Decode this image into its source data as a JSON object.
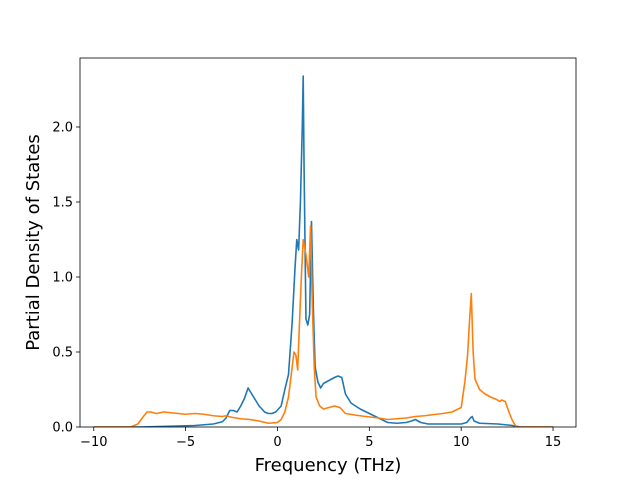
{
  "chart_data": {
    "type": "line",
    "title": "",
    "xlabel": "Frequency (THz)",
    "ylabel": "Partial Density of States",
    "xlim": [
      -10.75,
      16.25
    ],
    "ylim": [
      0,
      2.46
    ],
    "xticks": [
      -10,
      -5,
      0,
      5,
      10,
      15
    ],
    "xtick_labels": [
      "−10",
      "−5",
      "0",
      "5",
      "10",
      "15"
    ],
    "yticks": [
      0.0,
      0.5,
      1.0,
      1.5,
      2.0
    ],
    "ytick_labels": [
      "0.0",
      "0.5",
      "1.0",
      "1.5",
      "2.0"
    ],
    "grid": false,
    "legend": "none",
    "series": [
      {
        "color": "#1f77b4",
        "points": [
          [
            -10,
            0
          ],
          [
            -7.5,
            0.0
          ],
          [
            -6,
            0.005
          ],
          [
            -4.5,
            0.01
          ],
          [
            -3.5,
            0.02
          ],
          [
            -3,
            0.035
          ],
          [
            -2.8,
            0.06
          ],
          [
            -2.6,
            0.11
          ],
          [
            -2.4,
            0.11
          ],
          [
            -2.2,
            0.1
          ],
          [
            -2.0,
            0.14
          ],
          [
            -1.8,
            0.19
          ],
          [
            -1.6,
            0.26
          ],
          [
            -1.5,
            0.24
          ],
          [
            -1.3,
            0.2
          ],
          [
            -1.0,
            0.14
          ],
          [
            -0.7,
            0.1
          ],
          [
            -0.5,
            0.09
          ],
          [
            -0.3,
            0.09
          ],
          [
            -0.1,
            0.1
          ],
          [
            0.2,
            0.14
          ],
          [
            0.4,
            0.25
          ],
          [
            0.6,
            0.35
          ],
          [
            0.8,
            0.7
          ],
          [
            0.95,
            1.05
          ],
          [
            1.05,
            1.25
          ],
          [
            1.15,
            1.18
          ],
          [
            1.25,
            1.5
          ],
          [
            1.35,
            2.0
          ],
          [
            1.4,
            2.34
          ],
          [
            1.45,
            1.7
          ],
          [
            1.55,
            0.72
          ],
          [
            1.65,
            0.68
          ],
          [
            1.75,
            0.75
          ],
          [
            1.85,
            1.37
          ],
          [
            1.95,
            0.8
          ],
          [
            2.05,
            0.4
          ],
          [
            2.2,
            0.3
          ],
          [
            2.35,
            0.26
          ],
          [
            2.5,
            0.29
          ],
          [
            2.8,
            0.31
          ],
          [
            3.1,
            0.33
          ],
          [
            3.3,
            0.34
          ],
          [
            3.5,
            0.33
          ],
          [
            3.7,
            0.22
          ],
          [
            4.0,
            0.16
          ],
          [
            4.5,
            0.12
          ],
          [
            5.0,
            0.09
          ],
          [
            5.5,
            0.06
          ],
          [
            6.0,
            0.03
          ],
          [
            6.5,
            0.025
          ],
          [
            7.0,
            0.03
          ],
          [
            7.3,
            0.04
          ],
          [
            7.5,
            0.05
          ],
          [
            7.8,
            0.03
          ],
          [
            8.2,
            0.02
          ],
          [
            9.0,
            0.02
          ],
          [
            10.0,
            0.02
          ],
          [
            10.3,
            0.03
          ],
          [
            10.5,
            0.06
          ],
          [
            10.6,
            0.07
          ],
          [
            10.7,
            0.04
          ],
          [
            11.0,
            0.025
          ],
          [
            12.0,
            0.02
          ],
          [
            12.8,
            0.01
          ],
          [
            13.2,
            0.0
          ],
          [
            15,
            0
          ]
        ]
      },
      {
        "color": "#ff7f0e",
        "points": [
          [
            -10,
            0
          ],
          [
            -8.0,
            0.0
          ],
          [
            -7.6,
            0.02
          ],
          [
            -7.3,
            0.07
          ],
          [
            -7.1,
            0.1
          ],
          [
            -6.9,
            0.1
          ],
          [
            -6.6,
            0.09
          ],
          [
            -6.2,
            0.1
          ],
          [
            -5.8,
            0.095
          ],
          [
            -5.4,
            0.09
          ],
          [
            -5.0,
            0.085
          ],
          [
            -4.5,
            0.09
          ],
          [
            -4.0,
            0.085
          ],
          [
            -3.5,
            0.075
          ],
          [
            -3.0,
            0.07
          ],
          [
            -2.8,
            0.075
          ],
          [
            -2.5,
            0.065
          ],
          [
            -2.0,
            0.055
          ],
          [
            -1.5,
            0.05
          ],
          [
            -1.0,
            0.04
          ],
          [
            -0.5,
            0.025
          ],
          [
            0,
            0.03
          ],
          [
            0.2,
            0.05
          ],
          [
            0.4,
            0.1
          ],
          [
            0.6,
            0.2
          ],
          [
            0.8,
            0.4
          ],
          [
            0.9,
            0.5
          ],
          [
            1.0,
            0.48
          ],
          [
            1.1,
            0.38
          ],
          [
            1.2,
            0.7
          ],
          [
            1.3,
            1.0
          ],
          [
            1.4,
            1.25
          ],
          [
            1.55,
            1.15
          ],
          [
            1.7,
            1.0
          ],
          [
            1.8,
            1.34
          ],
          [
            1.9,
            0.8
          ],
          [
            2.0,
            0.4
          ],
          [
            2.1,
            0.2
          ],
          [
            2.3,
            0.14
          ],
          [
            2.5,
            0.12
          ],
          [
            2.8,
            0.13
          ],
          [
            3.1,
            0.14
          ],
          [
            3.4,
            0.13
          ],
          [
            3.7,
            0.09
          ],
          [
            4.2,
            0.08
          ],
          [
            4.8,
            0.07
          ],
          [
            5.5,
            0.06
          ],
          [
            6.0,
            0.05
          ],
          [
            6.5,
            0.055
          ],
          [
            7.0,
            0.06
          ],
          [
            7.5,
            0.07
          ],
          [
            8.0,
            0.075
          ],
          [
            9.0,
            0.09
          ],
          [
            9.5,
            0.1
          ],
          [
            10.0,
            0.13
          ],
          [
            10.2,
            0.3
          ],
          [
            10.35,
            0.48
          ],
          [
            10.45,
            0.7
          ],
          [
            10.55,
            0.89
          ],
          [
            10.65,
            0.5
          ],
          [
            10.75,
            0.32
          ],
          [
            11.0,
            0.25
          ],
          [
            11.3,
            0.22
          ],
          [
            11.6,
            0.2
          ],
          [
            11.9,
            0.185
          ],
          [
            12.1,
            0.17
          ],
          [
            12.2,
            0.18
          ],
          [
            12.4,
            0.17
          ],
          [
            12.6,
            0.1
          ],
          [
            12.8,
            0.04
          ],
          [
            13.0,
            0.0
          ],
          [
            15,
            0
          ]
        ]
      }
    ]
  }
}
